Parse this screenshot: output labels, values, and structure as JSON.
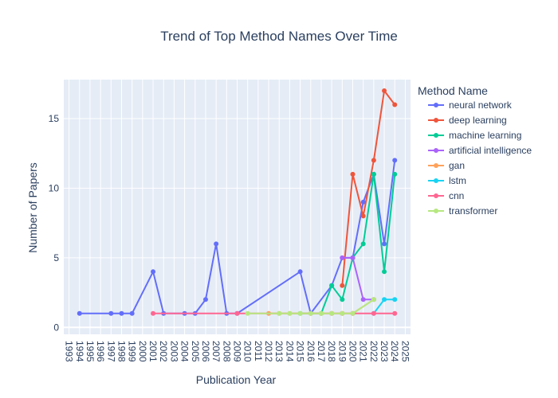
{
  "chart_data": {
    "type": "line",
    "title": "Trend of Top Method Names Over Time",
    "xlabel": "Publication Year",
    "ylabel": "Number of Papers",
    "xlim": [
      1992.5,
      2025.5
    ],
    "ylim": [
      -0.5,
      17.8
    ],
    "x_ticks": [
      1993,
      1994,
      1995,
      1996,
      1997,
      1998,
      1999,
      2000,
      2001,
      2002,
      2003,
      2004,
      2005,
      2006,
      2007,
      2008,
      2009,
      2010,
      2011,
      2012,
      2013,
      2014,
      2015,
      2016,
      2017,
      2018,
      2019,
      2020,
      2021,
      2022,
      2023,
      2024,
      2025
    ],
    "y_ticks": [
      0,
      5,
      10,
      15
    ],
    "legend_title": "Method Name",
    "legend_position": "right",
    "grid": true,
    "plot_bg": "#e5ecf6",
    "series": [
      {
        "name": "neural network",
        "color": "#636efa",
        "points": [
          [
            1994,
            1
          ],
          [
            1997,
            1
          ],
          [
            1998,
            1
          ],
          [
            1999,
            1
          ],
          [
            2001,
            4
          ],
          [
            2002,
            1
          ],
          [
            2004,
            1
          ],
          [
            2005,
            1
          ],
          [
            2006,
            2
          ],
          [
            2007,
            6
          ],
          [
            2008,
            1
          ],
          [
            2009,
            1
          ],
          [
            2015,
            4
          ],
          [
            2016,
            1
          ],
          [
            2018,
            3
          ],
          [
            2019,
            5
          ],
          [
            2020,
            5
          ],
          [
            2021,
            9
          ],
          [
            2022,
            11
          ],
          [
            2023,
            6
          ],
          [
            2024,
            12
          ]
        ]
      },
      {
        "name": "deep learning",
        "color": "#ef553b",
        "points": [
          [
            2019,
            3
          ],
          [
            2020,
            11
          ],
          [
            2021,
            8
          ],
          [
            2022,
            12
          ],
          [
            2023,
            17
          ],
          [
            2024,
            16
          ]
        ]
      },
      {
        "name": "machine learning",
        "color": "#00cc96",
        "points": [
          [
            2015,
            1
          ],
          [
            2017,
            1
          ],
          [
            2018,
            3
          ],
          [
            2019,
            2
          ],
          [
            2020,
            5
          ],
          [
            2021,
            6
          ],
          [
            2022,
            11
          ],
          [
            2023,
            4
          ],
          [
            2024,
            11
          ]
        ]
      },
      {
        "name": "artificial intelligence",
        "color": "#ab63fa",
        "points": [
          [
            2019,
            5
          ],
          [
            2020,
            5
          ],
          [
            2021,
            2
          ],
          [
            2022,
            2
          ]
        ]
      },
      {
        "name": "gan",
        "color": "#ffa15a",
        "points": [
          [
            2012,
            1
          ],
          [
            2013,
            1
          ],
          [
            2014,
            1
          ],
          [
            2016,
            1
          ],
          [
            2017,
            1
          ],
          [
            2018,
            1
          ],
          [
            2019,
            1
          ],
          [
            2020,
            1
          ],
          [
            2022,
            2
          ]
        ]
      },
      {
        "name": "lstm",
        "color": "#19d3f3",
        "points": [
          [
            2022,
            1
          ],
          [
            2023,
            2
          ],
          [
            2024,
            2
          ]
        ]
      },
      {
        "name": "cnn",
        "color": "#ff6692",
        "points": [
          [
            2001,
            1
          ],
          [
            2009,
            1
          ],
          [
            2018,
            1
          ],
          [
            2019,
            1
          ],
          [
            2020,
            1
          ],
          [
            2022,
            1
          ],
          [
            2024,
            1
          ]
        ]
      },
      {
        "name": "transformer",
        "color": "#b6e880",
        "points": [
          [
            2010,
            1
          ],
          [
            2013,
            1
          ],
          [
            2014,
            1
          ],
          [
            2015,
            1
          ],
          [
            2016,
            1
          ],
          [
            2017,
            1
          ],
          [
            2018,
            1
          ],
          [
            2019,
            1
          ],
          [
            2020,
            1
          ],
          [
            2022,
            2
          ]
        ]
      }
    ]
  }
}
